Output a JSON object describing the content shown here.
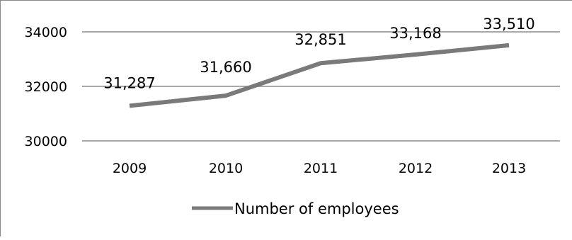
{
  "chart_data": {
    "type": "line",
    "categories": [
      "2009",
      "2010",
      "2011",
      "2012",
      "2013"
    ],
    "series": [
      {
        "name": "Number of employees",
        "values": [
          31287,
          31660,
          32851,
          33168,
          33510
        ],
        "data_labels": [
          "31,287",
          "31,660",
          "32,851",
          "33,168",
          "33,510"
        ]
      }
    ],
    "ylim": [
      30000,
      34000
    ],
    "yticks": [
      30000,
      32000,
      34000
    ],
    "ytick_labels": [
      "30000",
      "32000",
      "34000"
    ],
    "title": "",
    "xlabel": "",
    "ylabel": "",
    "grid": "horizontal",
    "legend_position": "bottom",
    "line_color": "#7a7a7a",
    "grid_color": "#8c8c8c"
  }
}
